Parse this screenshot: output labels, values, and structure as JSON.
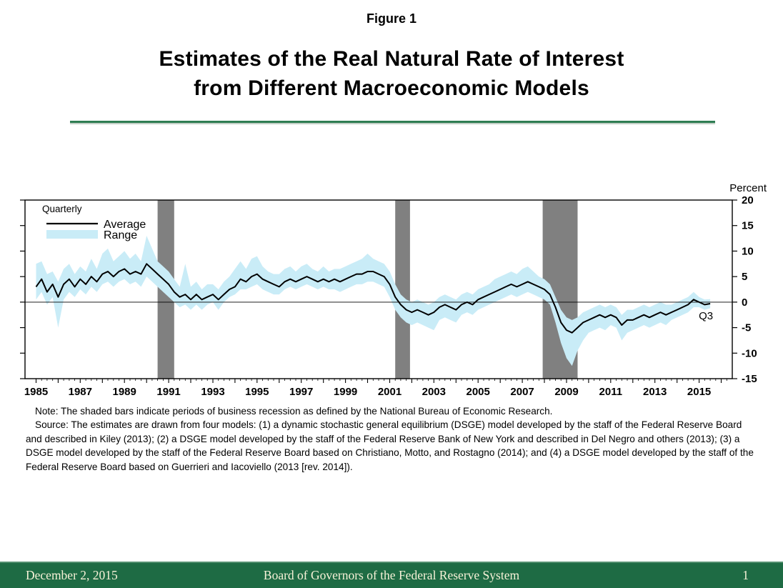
{
  "figure_label": "Figure 1",
  "title_line1": "Estimates of the Real Natural Rate of Interest",
  "title_line2": "from Different Macroeconomic Models",
  "note": "Note:  The shaded bars indicate periods of business recession as defined by the National Bureau of Economic Research.",
  "source": "Source:  The estimates are drawn from four models: (1) a dynamic stochastic general equilibrium (DSGE) model developed by the staff of the Federal Reserve Board and described in Kiley (2013); (2) a DSGE model developed by the staff of the Federal Reserve Bank of New York and described in Del Negro and others (2013); (3) a DSGE model developed by the staff of the Federal Reserve Board based on Christiano, Motto, and Rostagno (2014); and (4) a DSGE model developed by the staff of the Federal Reserve Board based on Guerrieri and Iacoviello (2013 [rev. 2014]).",
  "footer": {
    "date": "December 2, 2015",
    "center": "Board of Governors of the Federal Reserve System",
    "page": "1"
  },
  "colors": {
    "band": "#c9ecf7",
    "line": "#000000",
    "recession": "#808080",
    "rule_green": "#2e7d52",
    "footer_green": "#1e6b44"
  },
  "chart_data": {
    "type": "line",
    "title": "Estimates of the Real Natural Rate of Interest from Different Macroeconomic Models",
    "ylabel": "Percent",
    "frequency_label": "Quarterly",
    "end_label": "Q3",
    "legend": {
      "series": [
        {
          "name": "Average"
        },
        {
          "name": "Range"
        }
      ]
    },
    "xlim": [
      1984.5,
      2016.5
    ],
    "ylim": [
      -15,
      20
    ],
    "y_ticks": [
      20,
      15,
      10,
      5,
      0,
      -5,
      -10,
      -15
    ],
    "x_axis_ticks": [
      1985,
      1987,
      1989,
      1991,
      1993,
      1995,
      1997,
      1999,
      2001,
      2003,
      2005,
      2007,
      2009,
      2011,
      2013,
      2015
    ],
    "x_start": 1985,
    "x_step": 0.25,
    "recessions": [
      [
        1990.5,
        1991.25
      ],
      [
        2001.25,
        2001.92
      ],
      [
        2007.92,
        2009.5
      ]
    ],
    "series_note": "quarters entries are [average, range_low, range_high] in percent, 1985Q1-2015Q3",
    "quarters": [
      [
        3.0,
        0.5,
        7.5
      ],
      [
        4.5,
        2.0,
        8.0
      ],
      [
        2.0,
        -0.5,
        5.5
      ],
      [
        3.5,
        1.0,
        6.0
      ],
      [
        1.0,
        -5.0,
        4.0
      ],
      [
        3.5,
        0.5,
        6.5
      ],
      [
        4.5,
        2.0,
        7.5
      ],
      [
        3.0,
        1.0,
        5.5
      ],
      [
        4.5,
        2.5,
        7.0
      ],
      [
        3.5,
        1.5,
        6.0
      ],
      [
        5.0,
        3.0,
        8.5
      ],
      [
        4.0,
        2.0,
        6.5
      ],
      [
        5.5,
        3.5,
        9.5
      ],
      [
        6.0,
        4.0,
        10.5
      ],
      [
        5.0,
        3.0,
        8.0
      ],
      [
        6.0,
        4.0,
        9.0
      ],
      [
        6.5,
        4.5,
        10.0
      ],
      [
        5.5,
        3.5,
        8.5
      ],
      [
        6.0,
        4.0,
        9.5
      ],
      [
        5.5,
        3.0,
        8.0
      ],
      [
        7.5,
        5.0,
        13.0
      ],
      [
        6.5,
        4.0,
        10.5
      ],
      [
        5.5,
        3.0,
        8.0
      ],
      [
        4.5,
        2.0,
        7.0
      ],
      [
        3.5,
        1.0,
        6.0
      ],
      [
        2.0,
        0.0,
        4.5
      ],
      [
        1.0,
        -1.0,
        3.0
      ],
      [
        1.5,
        -0.5,
        7.5
      ],
      [
        0.5,
        -1.5,
        3.0
      ],
      [
        1.5,
        -0.5,
        4.0
      ],
      [
        0.5,
        -1.5,
        2.5
      ],
      [
        1.0,
        -0.5,
        3.5
      ],
      [
        1.5,
        0.0,
        3.5
      ],
      [
        0.5,
        -1.5,
        2.5
      ],
      [
        1.5,
        0.0,
        4.0
      ],
      [
        2.5,
        1.0,
        5.0
      ],
      [
        3.0,
        1.5,
        6.5
      ],
      [
        4.5,
        2.5,
        8.0
      ],
      [
        4.0,
        2.5,
        6.5
      ],
      [
        5.0,
        3.0,
        8.5
      ],
      [
        5.5,
        3.5,
        9.0
      ],
      [
        4.5,
        2.5,
        7.0
      ],
      [
        4.0,
        2.0,
        6.0
      ],
      [
        3.5,
        1.5,
        5.5
      ],
      [
        3.0,
        1.5,
        5.5
      ],
      [
        4.0,
        2.5,
        6.5
      ],
      [
        4.5,
        3.0,
        7.0
      ],
      [
        4.0,
        2.5,
        6.0
      ],
      [
        4.5,
        3.0,
        7.0
      ],
      [
        5.0,
        3.5,
        7.5
      ],
      [
        4.5,
        3.0,
        6.5
      ],
      [
        4.0,
        2.5,
        6.0
      ],
      [
        4.5,
        3.0,
        7.0
      ],
      [
        4.0,
        2.5,
        6.0
      ],
      [
        4.5,
        2.5,
        6.5
      ],
      [
        4.0,
        2.0,
        6.5
      ],
      [
        4.5,
        2.5,
        7.0
      ],
      [
        5.0,
        3.0,
        7.5
      ],
      [
        5.5,
        3.5,
        8.0
      ],
      [
        5.5,
        3.5,
        8.5
      ],
      [
        6.0,
        4.0,
        9.5
      ],
      [
        6.0,
        4.0,
        8.5
      ],
      [
        5.5,
        3.5,
        8.0
      ],
      [
        5.0,
        3.0,
        7.5
      ],
      [
        3.5,
        1.0,
        6.0
      ],
      [
        1.0,
        -1.5,
        3.5
      ],
      [
        -0.5,
        -3.0,
        1.5
      ],
      [
        -1.5,
        -4.0,
        0.5
      ],
      [
        -2.0,
        -4.5,
        0.0
      ],
      [
        -1.5,
        -4.0,
        0.5
      ],
      [
        -2.0,
        -4.5,
        0.0
      ],
      [
        -2.5,
        -5.0,
        -0.5
      ],
      [
        -2.0,
        -5.5,
        0.0
      ],
      [
        -1.0,
        -3.5,
        1.0
      ],
      [
        -0.5,
        -3.0,
        1.5
      ],
      [
        -1.0,
        -3.5,
        1.0
      ],
      [
        -1.5,
        -4.0,
        0.5
      ],
      [
        -0.5,
        -2.5,
        1.5
      ],
      [
        0.0,
        -2.0,
        2.0
      ],
      [
        -0.5,
        -2.5,
        1.5
      ],
      [
        0.5,
        -1.5,
        2.5
      ],
      [
        1.0,
        -1.0,
        3.0
      ],
      [
        1.5,
        -0.5,
        3.5
      ],
      [
        2.0,
        0.0,
        4.5
      ],
      [
        2.5,
        0.5,
        5.0
      ],
      [
        3.0,
        1.0,
        5.5
      ],
      [
        3.5,
        1.5,
        6.0
      ],
      [
        3.0,
        1.0,
        5.5
      ],
      [
        3.5,
        1.5,
        6.5
      ],
      [
        4.0,
        2.0,
        7.0
      ],
      [
        3.5,
        1.5,
        6.0
      ],
      [
        3.0,
        1.0,
        5.0
      ],
      [
        2.5,
        0.5,
        4.5
      ],
      [
        1.5,
        -0.5,
        3.5
      ],
      [
        -1.0,
        -4.0,
        1.0
      ],
      [
        -4.0,
        -8.0,
        -1.5
      ],
      [
        -5.5,
        -11.0,
        -3.0
      ],
      [
        -6.0,
        -12.5,
        -3.5
      ],
      [
        -5.0,
        -9.5,
        -3.0
      ],
      [
        -4.0,
        -7.5,
        -2.0
      ],
      [
        -3.5,
        -6.0,
        -1.5
      ],
      [
        -3.0,
        -5.5,
        -1.0
      ],
      [
        -2.5,
        -5.0,
        -0.5
      ],
      [
        -3.0,
        -5.5,
        -1.0
      ],
      [
        -2.5,
        -4.5,
        -0.5
      ],
      [
        -3.0,
        -5.0,
        -1.0
      ],
      [
        -4.5,
        -7.5,
        -2.5
      ],
      [
        -3.5,
        -6.0,
        -1.5
      ],
      [
        -3.5,
        -5.5,
        -1.5
      ],
      [
        -3.0,
        -5.0,
        -1.0
      ],
      [
        -2.5,
        -4.5,
        -0.5
      ],
      [
        -3.0,
        -5.0,
        -1.0
      ],
      [
        -2.5,
        -4.5,
        -0.5
      ],
      [
        -2.0,
        -4.0,
        0.0
      ],
      [
        -2.5,
        -4.5,
        -0.5
      ],
      [
        -2.0,
        -3.5,
        -0.5
      ],
      [
        -1.5,
        -3.0,
        0.0
      ],
      [
        -1.0,
        -2.5,
        0.5
      ],
      [
        -0.5,
        -2.0,
        1.0
      ],
      [
        0.5,
        -1.0,
        2.0
      ],
      [
        0.0,
        -1.0,
        1.0
      ],
      [
        -0.5,
        -1.5,
        0.5
      ],
      [
        -0.3,
        -1.2,
        0.6
      ]
    ]
  }
}
